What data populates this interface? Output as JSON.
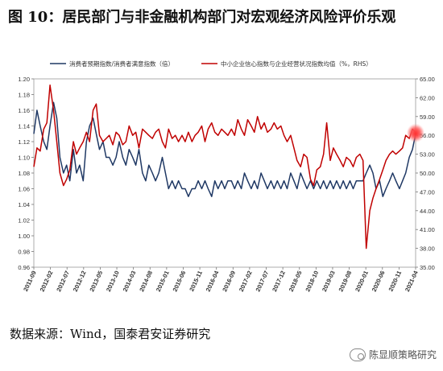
{
  "figure": {
    "title": "图 10：居民部门与非金融机构部门对宏观经济风险评价乐观",
    "source": "数据来源：Wind，国泰君安证券研究",
    "watermark": "陈显顺策略研究"
  },
  "chart_data": {
    "type": "line",
    "legend_placement": "top",
    "grid": false,
    "x_ticks": [
      "2011-09",
      "2012-02",
      "2012-07",
      "2012-12",
      "2013-05",
      "2013-10",
      "2014-03",
      "2014-08",
      "2015-01",
      "2015-06",
      "2015-11",
      "2016-04",
      "2016-09",
      "2017-02",
      "2017-07",
      "2017-12",
      "2018-05",
      "2018-10",
      "2019-03",
      "2019-08",
      "2020-01",
      "2020-06",
      "2020-11",
      "2021-04"
    ],
    "left_axis": {
      "ylim": [
        0.96,
        1.2
      ],
      "ticks": [
        "0.96",
        "0.98",
        "1.00",
        "1.02",
        "1.04",
        "1.06",
        "1.08",
        "1.10",
        "1.12",
        "1.14",
        "1.16",
        "1.18",
        "1.20"
      ]
    },
    "right_axis": {
      "label_hint": "RHS",
      "ylim": [
        35.0,
        65.0
      ],
      "ticks": [
        "35.00",
        "38.00",
        "41.00",
        "44.00",
        "47.00",
        "50.00",
        "53.00",
        "56.00",
        "59.00",
        "62.00",
        "65.00"
      ]
    },
    "series": [
      {
        "name": "消费者预期指数/消费者满意指数（倍）",
        "axis": "left",
        "color": "#1f3864",
        "x": [
          2011.67,
          2011.75,
          2011.83,
          2011.92,
          2012.0,
          2012.08,
          2012.17,
          2012.25,
          2012.33,
          2012.42,
          2012.5,
          2012.58,
          2012.67,
          2012.75,
          2012.83,
          2012.92,
          2013.0,
          2013.08,
          2013.17,
          2013.25,
          2013.33,
          2013.42,
          2013.5,
          2013.58,
          2013.67,
          2013.75,
          2013.83,
          2013.92,
          2014.0,
          2014.08,
          2014.17,
          2014.25,
          2014.33,
          2014.42,
          2014.5,
          2014.58,
          2014.67,
          2014.75,
          2014.83,
          2014.92,
          2015.0,
          2015.08,
          2015.17,
          2015.25,
          2015.33,
          2015.42,
          2015.5,
          2015.58,
          2015.67,
          2015.75,
          2015.83,
          2015.92,
          2016.0,
          2016.08,
          2016.17,
          2016.25,
          2016.33,
          2016.42,
          2016.5,
          2016.58,
          2016.67,
          2016.75,
          2016.83,
          2016.92,
          2017.0,
          2017.08,
          2017.17,
          2017.25,
          2017.33,
          2017.42,
          2017.5,
          2017.58,
          2017.67,
          2017.75,
          2017.83,
          2017.92,
          2018.0,
          2018.08,
          2018.17,
          2018.25,
          2018.33,
          2018.42,
          2018.5,
          2018.58,
          2018.67,
          2018.75,
          2018.83,
          2018.92,
          2019.0,
          2019.08,
          2019.17,
          2019.25,
          2019.33,
          2019.42,
          2019.5,
          2019.58,
          2019.67,
          2019.75,
          2019.83,
          2019.92,
          2020.0,
          2020.08,
          2020.17,
          2020.25,
          2020.33,
          2020.42,
          2020.5,
          2020.58,
          2020.67,
          2020.75,
          2020.83,
          2020.92,
          2021.0,
          2021.08,
          2021.17,
          2021.25,
          2021.33
        ],
        "values": [
          1.13,
          1.16,
          1.14,
          1.12,
          1.11,
          1.14,
          1.17,
          1.15,
          1.1,
          1.08,
          1.09,
          1.07,
          1.11,
          1.08,
          1.09,
          1.07,
          1.12,
          1.14,
          1.15,
          1.13,
          1.11,
          1.12,
          1.1,
          1.1,
          1.09,
          1.1,
          1.12,
          1.1,
          1.09,
          1.11,
          1.1,
          1.09,
          1.11,
          1.08,
          1.07,
          1.09,
          1.08,
          1.07,
          1.08,
          1.1,
          1.08,
          1.06,
          1.07,
          1.06,
          1.07,
          1.06,
          1.06,
          1.05,
          1.06,
          1.06,
          1.07,
          1.06,
          1.07,
          1.06,
          1.05,
          1.07,
          1.06,
          1.07,
          1.06,
          1.07,
          1.07,
          1.06,
          1.07,
          1.06,
          1.08,
          1.07,
          1.06,
          1.07,
          1.06,
          1.08,
          1.07,
          1.06,
          1.07,
          1.06,
          1.07,
          1.06,
          1.07,
          1.06,
          1.08,
          1.07,
          1.06,
          1.08,
          1.07,
          1.06,
          1.07,
          1.06,
          1.07,
          1.06,
          1.07,
          1.06,
          1.07,
          1.06,
          1.07,
          1.06,
          1.07,
          1.06,
          1.07,
          1.06,
          1.07,
          1.07,
          1.07,
          1.08,
          1.09,
          1.08,
          1.06,
          1.07,
          1.05,
          1.06,
          1.07,
          1.08,
          1.07,
          1.06,
          1.07,
          1.08,
          1.1,
          1.11,
          1.13
        ]
      },
      {
        "name": "中小企业信心指数与企业经营状况指数均值（%，RHS）",
        "axis": "right",
        "color": "#c00000",
        "x": [
          2011.67,
          2011.75,
          2011.83,
          2011.92,
          2012.0,
          2012.08,
          2012.17,
          2012.25,
          2012.33,
          2012.42,
          2012.5,
          2012.58,
          2012.67,
          2012.75,
          2012.83,
          2012.92,
          2013.0,
          2013.08,
          2013.17,
          2013.25,
          2013.33,
          2013.42,
          2013.5,
          2013.58,
          2013.67,
          2013.75,
          2013.83,
          2013.92,
          2014.0,
          2014.08,
          2014.17,
          2014.25,
          2014.33,
          2014.42,
          2014.5,
          2014.58,
          2014.67,
          2014.75,
          2014.83,
          2014.92,
          2015.0,
          2015.08,
          2015.17,
          2015.25,
          2015.33,
          2015.42,
          2015.5,
          2015.58,
          2015.67,
          2015.75,
          2015.83,
          2015.92,
          2016.0,
          2016.08,
          2016.17,
          2016.25,
          2016.33,
          2016.42,
          2016.5,
          2016.58,
          2016.67,
          2016.75,
          2016.83,
          2016.92,
          2017.0,
          2017.08,
          2017.17,
          2017.25,
          2017.33,
          2017.42,
          2017.5,
          2017.58,
          2017.67,
          2017.75,
          2017.83,
          2017.92,
          2018.0,
          2018.08,
          2018.17,
          2018.25,
          2018.33,
          2018.42,
          2018.5,
          2018.58,
          2018.67,
          2018.75,
          2018.83,
          2018.92,
          2019.0,
          2019.08,
          2019.17,
          2019.25,
          2019.33,
          2019.42,
          2019.5,
          2019.58,
          2019.67,
          2019.75,
          2019.83,
          2019.92,
          2020.0,
          2020.08,
          2020.17,
          2020.25,
          2020.33,
          2020.42,
          2020.5,
          2020.58,
          2020.67,
          2020.75,
          2020.83,
          2020.92,
          2021.0,
          2021.08,
          2021.17,
          2021.25,
          2021.33
        ],
        "values": [
          51.0,
          54.0,
          53.5,
          57.0,
          58.0,
          64.0,
          60.0,
          55.0,
          50.0,
          48.0,
          49.0,
          50.5,
          55.0,
          53.0,
          54.0,
          55.0,
          56.5,
          55.0,
          60.0,
          61.0,
          56.0,
          55.0,
          55.5,
          56.0,
          54.5,
          56.5,
          56.0,
          54.5,
          55.0,
          57.5,
          56.0,
          56.5,
          54.0,
          57.0,
          56.5,
          56.0,
          55.5,
          56.5,
          57.0,
          55.0,
          54.0,
          57.0,
          55.5,
          56.0,
          55.0,
          56.0,
          55.0,
          56.5,
          55.0,
          56.0,
          56.5,
          57.5,
          55.0,
          57.0,
          58.0,
          56.5,
          56.0,
          57.0,
          56.5,
          56.0,
          57.0,
          56.0,
          58.5,
          57.0,
          56.0,
          58.5,
          57.5,
          56.5,
          59.0,
          57.0,
          58.0,
          56.5,
          57.0,
          58.0,
          57.0,
          57.5,
          56.0,
          55.0,
          56.0,
          54.0,
          52.0,
          51.0,
          53.0,
          52.5,
          49.0,
          48.0,
          50.5,
          51.0,
          53.0,
          58.0,
          52.0,
          54.0,
          53.0,
          52.0,
          51.0,
          52.5,
          52.0,
          51.0,
          52.5,
          53.0,
          52.0,
          38.0,
          44.0,
          46.0,
          47.5,
          49.0,
          50.5,
          52.0,
          53.0,
          53.5,
          53.0,
          53.5,
          54.0,
          56.0,
          55.5,
          57.0,
          56.5
        ]
      }
    ]
  }
}
